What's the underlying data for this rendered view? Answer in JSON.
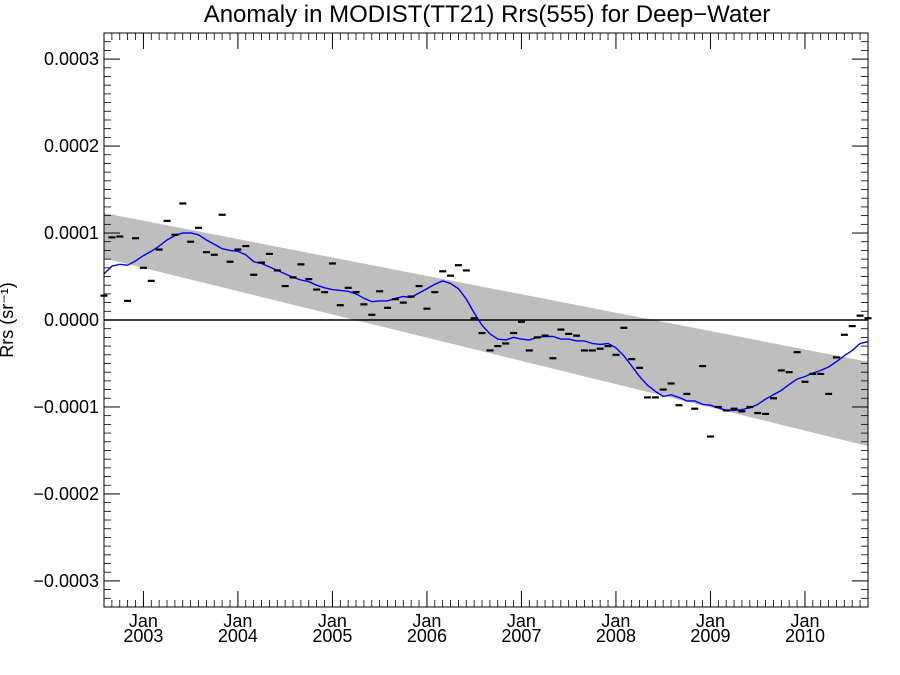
{
  "chart_data": {
    "type": "scatter",
    "title": "Anomaly in MODIST(TT21) Rrs(555) for Deep−Water",
    "ylabel": "Rrs (sr⁻¹)",
    "xlabel": "",
    "xlim": [
      2002.583,
      2010.667
    ],
    "ylim": [
      -0.00033,
      0.00033
    ],
    "y_ticks": [
      {
        "value": 0.0003,
        "label": "0.0003"
      },
      {
        "value": 0.0002,
        "label": "0.0002"
      },
      {
        "value": 0.0001,
        "label": "0.0001"
      },
      {
        "value": 0.0,
        "label": "0.0000"
      },
      {
        "value": -0.0001,
        "label": "−0.0001"
      },
      {
        "value": -0.0002,
        "label": "−0.0002"
      },
      {
        "value": -0.0003,
        "label": "−0.0003"
      }
    ],
    "x_ticks": [
      {
        "value": 2003.0,
        "line1": "Jan",
        "line2": "2003"
      },
      {
        "value": 2004.0,
        "line1": "Jan",
        "line2": "2004"
      },
      {
        "value": 2005.0,
        "line1": "Jan",
        "line2": "2005"
      },
      {
        "value": 2006.0,
        "line1": "Jan",
        "line2": "2006"
      },
      {
        "value": 2007.0,
        "line1": "Jan",
        "line2": "2007"
      },
      {
        "value": 2008.0,
        "line1": "Jan",
        "line2": "2008"
      },
      {
        "value": 2009.0,
        "line1": "Jan",
        "line2": "2009"
      },
      {
        "value": 2010.0,
        "line1": "Jan",
        "line2": "2010"
      }
    ],
    "zero_line": 0.0,
    "trend_band": {
      "color": "#bebebe",
      "upper": [
        [
          2002.583,
          0.000123
        ],
        [
          2010.667,
          -4.8e-05
        ]
      ],
      "lower": [
        [
          2002.583,
          7.1e-05
        ],
        [
          2010.667,
          -0.000145
        ]
      ]
    },
    "monthly_points": {
      "color": "#000000",
      "marker": "dash",
      "x": [
        2002.583,
        2002.667,
        2002.75,
        2002.833,
        2002.917,
        2003.0,
        2003.083,
        2003.167,
        2003.25,
        2003.333,
        2003.417,
        2003.5,
        2003.583,
        2003.667,
        2003.75,
        2003.833,
        2003.917,
        2004.0,
        2004.083,
        2004.167,
        2004.25,
        2004.333,
        2004.417,
        2004.5,
        2004.583,
        2004.667,
        2004.75,
        2004.833,
        2004.917,
        2005.0,
        2005.083,
        2005.167,
        2005.25,
        2005.333,
        2005.417,
        2005.5,
        2005.583,
        2005.667,
        2005.75,
        2005.833,
        2005.917,
        2006.0,
        2006.083,
        2006.167,
        2006.25,
        2006.333,
        2006.417,
        2006.5,
        2006.583,
        2006.667,
        2006.75,
        2006.833,
        2006.917,
        2007.0,
        2007.083,
        2007.167,
        2007.25,
        2007.333,
        2007.417,
        2007.5,
        2007.583,
        2007.667,
        2007.75,
        2007.833,
        2007.917,
        2008.0,
        2008.083,
        2008.167,
        2008.25,
        2008.333,
        2008.417,
        2008.5,
        2008.583,
        2008.667,
        2008.75,
        2008.833,
        2008.917,
        2009.0,
        2009.083,
        2009.167,
        2009.25,
        2009.333,
        2009.417,
        2009.5,
        2009.583,
        2009.667,
        2009.75,
        2009.833,
        2009.917,
        2010.0,
        2010.083,
        2010.167,
        2010.25,
        2010.333,
        2010.417,
        2010.5,
        2010.583,
        2010.667
      ],
      "y": [
        2.8e-05,
        9.5e-05,
        9.6e-05,
        2.2e-05,
        9.4e-05,
        6e-05,
        4.5e-05,
        8.1e-05,
        0.000114,
        9.8e-05,
        0.000134,
        9e-05,
        0.000106,
        7.8e-05,
        7.5e-05,
        0.000121,
        6.7e-05,
        8.1e-05,
        8.5e-05,
        5.2e-05,
        6.6e-05,
        7.6e-05,
        5.7e-05,
        3.9e-05,
        4.9e-05,
        6.4e-05,
        4.7e-05,
        3.5e-05,
        3.2e-05,
        6.5e-05,
        1.7e-05,
        3.7e-05,
        3.2e-05,
        1.8e-05,
        6e-06,
        3.3e-05,
        1.4e-05,
        2.4e-05,
        2e-05,
        2.7e-05,
        3.9e-05,
        1.3e-05,
        3.2e-05,
        5.6e-05,
        5.1e-05,
        6.3e-05,
        5.7e-05,
        2e-06,
        -1.5e-05,
        -3.5e-05,
        -3e-05,
        -2.7e-05,
        -1.5e-05,
        -2e-06,
        -3.5e-05,
        -2e-05,
        -1.8e-05,
        -4.4e-05,
        -1.1e-05,
        -1.6e-05,
        -1.8e-05,
        -3.5e-05,
        -3.5e-05,
        -3.3e-05,
        -3e-05,
        -4e-05,
        -9e-06,
        -4.5e-05,
        -5.5e-05,
        -8.9e-05,
        -8.9e-05,
        -8e-05,
        -7.3e-05,
        -9.8e-05,
        -8.5e-05,
        -0.000102,
        -5.3e-05,
        -0.000134,
        -0.0001,
        -0.000104,
        -0.000102,
        -0.000105,
        -0.0001,
        -0.000107,
        -0.000108,
        -9e-05,
        -5.8e-05,
        -6e-05,
        -3.7e-05,
        -7.1e-05,
        -6.2e-05,
        -6.2e-05,
        -8.5e-05,
        -4.3e-05,
        -1.7e-05,
        -7e-06,
        5e-06,
        2e-06
      ]
    },
    "smoothed_series": {
      "color": "#0000ff",
      "x": [
        2002.583,
        2002.667,
        2002.75,
        2002.833,
        2002.917,
        2003.0,
        2003.083,
        2003.167,
        2003.25,
        2003.333,
        2003.417,
        2003.5,
        2003.583,
        2003.667,
        2003.75,
        2003.833,
        2003.917,
        2004.0,
        2004.083,
        2004.167,
        2004.25,
        2004.333,
        2004.417,
        2004.5,
        2004.583,
        2004.667,
        2004.75,
        2004.833,
        2004.917,
        2005.0,
        2005.083,
        2005.167,
        2005.25,
        2005.333,
        2005.417,
        2005.5,
        2005.583,
        2005.667,
        2005.75,
        2005.833,
        2005.917,
        2006.0,
        2006.083,
        2006.167,
        2006.25,
        2006.333,
        2006.417,
        2006.5,
        2006.583,
        2006.667,
        2006.75,
        2006.833,
        2006.917,
        2007.0,
        2007.083,
        2007.167,
        2007.25,
        2007.333,
        2007.417,
        2007.5,
        2007.583,
        2007.667,
        2007.75,
        2007.833,
        2007.917,
        2008.0,
        2008.083,
        2008.167,
        2008.25,
        2008.333,
        2008.417,
        2008.5,
        2008.583,
        2008.667,
        2008.75,
        2008.833,
        2008.917,
        2009.0,
        2009.083,
        2009.167,
        2009.25,
        2009.333,
        2009.417,
        2009.5,
        2009.583,
        2009.667,
        2009.75,
        2009.833,
        2009.917,
        2010.0,
        2010.083,
        2010.167,
        2010.25,
        2010.333,
        2010.417,
        2010.5,
        2010.583,
        2010.667
      ],
      "y": [
        5.3e-05,
        6.2e-05,
        6.4e-05,
        6.3e-05,
        6.8e-05,
        7.4e-05,
        7.9e-05,
        8.5e-05,
        9.2e-05,
        9.7e-05,
        0.0001,
        0.0001,
        9.8e-05,
        9.2e-05,
        8.7e-05,
        8.2e-05,
        8e-05,
        7.9e-05,
        7.5e-05,
        6.7e-05,
        6.5e-05,
        6.1e-05,
        5.7e-05,
        5.3e-05,
        4.9e-05,
        4.6e-05,
        4.4e-05,
        4e-05,
        3.7e-05,
        3.5e-05,
        3.4e-05,
        3.3e-05,
        3e-05,
        2.5e-05,
        2.1e-05,
        2.2e-05,
        2.2e-05,
        2.5e-05,
        2.7e-05,
        2.6e-05,
        3.1e-05,
        3.6e-05,
        4.1e-05,
        4.5e-05,
        4.2e-05,
        3.6e-05,
        2.4e-05,
        8e-06,
        -6e-06,
        -1.6e-05,
        -2.2e-05,
        -2.3e-05,
        -2e-05,
        -2.2e-05,
        -2.3e-05,
        -2e-05,
        -1.9e-05,
        -1.9e-05,
        -2.2e-05,
        -2.2e-05,
        -2.4e-05,
        -2.4e-05,
        -2.7e-05,
        -2.8e-05,
        -2.7e-05,
        -3.2e-05,
        -4.1e-05,
        -5.3e-05,
        -6.5e-05,
        -7.5e-05,
        -8.2e-05,
        -8.8e-05,
        -8.6e-05,
        -8.9e-05,
        -9.3e-05,
        -9.3e-05,
        -9.7e-05,
        -9.8e-05,
        -0.000101,
        -0.000104,
        -0.000104,
        -0.000103,
        -0.000101,
        -9.7e-05,
        -9.1e-05,
        -8.6e-05,
        -8.1e-05,
        -7.4e-05,
        -6.8e-05,
        -6.5e-05,
        -6.1e-05,
        -5.8e-05,
        -5.4e-05,
        -4.8e-05,
        -4.1e-05,
        -3.5e-05,
        -2.7e-05,
        -2.5e-05
      ]
    },
    "grid": false
  }
}
